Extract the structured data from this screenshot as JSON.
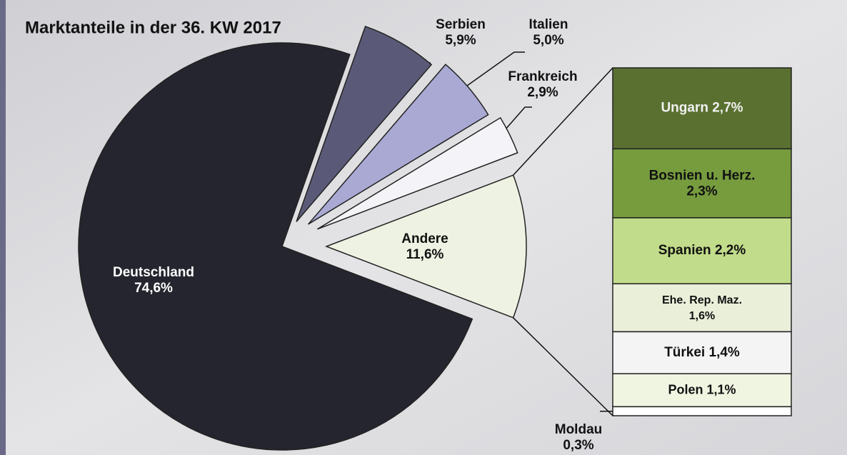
{
  "chart_data": [
    {
      "type": "pie",
      "title": "Marktanteile in der 36. KW 2017",
      "categories": [
        "Andere",
        "Frankreich",
        "Italien",
        "Serbien",
        "Deutschland"
      ],
      "values": [
        11.6,
        2.9,
        5.0,
        5.9,
        74.6
      ],
      "value_labels": [
        "11,6%",
        "2,9%",
        "5,0%",
        "5,9%",
        "74,6%"
      ],
      "colors": [
        "#eef2e2",
        "#f4f4f8",
        "#a9a9d4",
        "#5a5a78",
        "#25252f"
      ]
    },
    {
      "type": "stacked-bar",
      "categories": [
        "Ungarn",
        "Bosnien u. Herz.",
        "Spanien",
        "Ehe. Rep. Maz.",
        "Türkei",
        "Polen",
        "Moldau"
      ],
      "values": [
        2.7,
        2.3,
        2.2,
        1.6,
        1.4,
        1.1,
        0.3
      ],
      "value_labels": [
        "2,7%",
        "2,3%",
        "2,2%",
        "1,6%",
        "1,4%",
        "1,1%",
        "0,3%"
      ],
      "colors": [
        "#5a7030",
        "#769c3e",
        "#c1dc8a",
        "#e9efd9",
        "#f4f4f4",
        "#f0f5e2",
        "#ffffff"
      ]
    }
  ]
}
